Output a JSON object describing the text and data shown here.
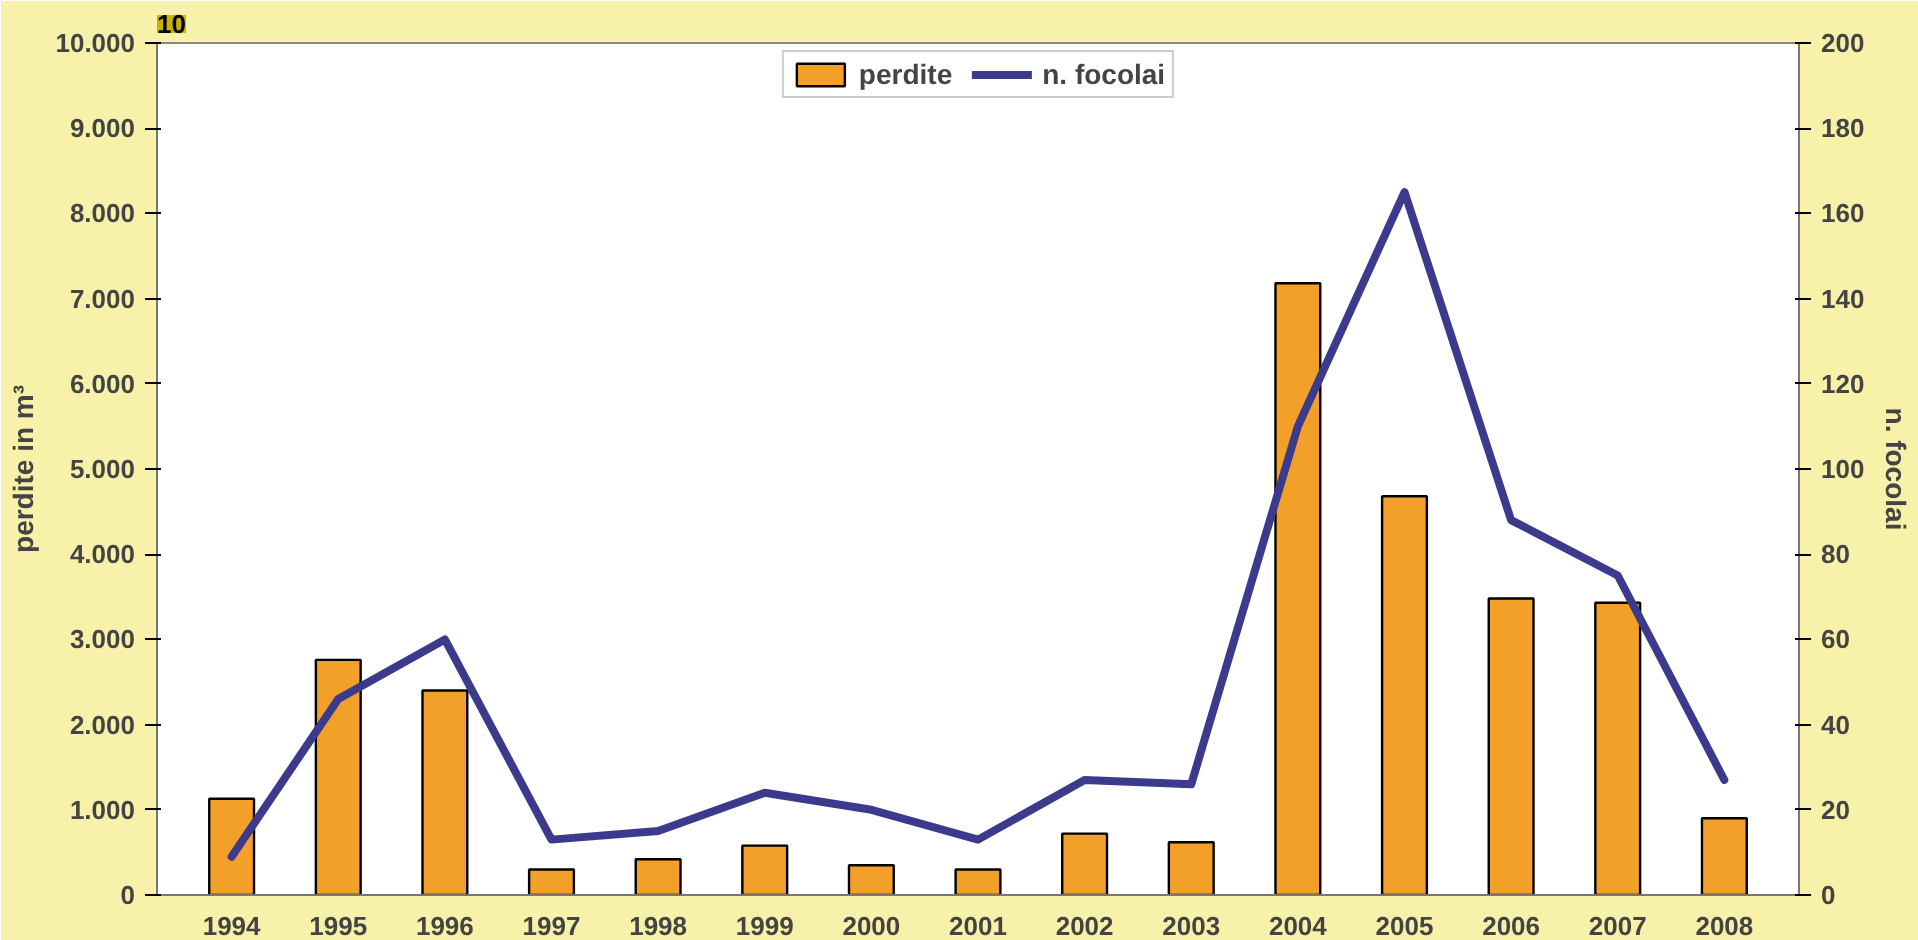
{
  "chart_data": {
    "type": "bar",
    "annotations": [
      "10"
    ],
    "categories": [
      "1994",
      "1995",
      "1996",
      "1997",
      "1998",
      "1999",
      "2000",
      "2001",
      "2002",
      "2003",
      "2004",
      "2005",
      "2006",
      "2007",
      "2008"
    ],
    "ylabel": "perdite in m³",
    "y2label": "n. focolai",
    "ylim": [
      0,
      10000
    ],
    "yticks": [
      {
        "value": 0,
        "label": "0"
      },
      {
        "value": 1000,
        "label": "1.000"
      },
      {
        "value": 2000,
        "label": "2.000"
      },
      {
        "value": 3000,
        "label": "3.000"
      },
      {
        "value": 4000,
        "label": "4.000"
      },
      {
        "value": 5000,
        "label": "5.000"
      },
      {
        "value": 6000,
        "label": "6.000"
      },
      {
        "value": 7000,
        "label": "7.000"
      },
      {
        "value": 8000,
        "label": "8.000"
      },
      {
        "value": 9000,
        "label": "9.000"
      },
      {
        "value": 10000,
        "label": "10.000"
      }
    ],
    "y2lim": [
      0,
      200
    ],
    "y2ticks": [
      0,
      20,
      40,
      60,
      80,
      100,
      120,
      140,
      160,
      180,
      200
    ],
    "legend": "top",
    "grid": false,
    "series": [
      {
        "name": "perdite",
        "color": "#f2a02a",
        "values": [
          1130,
          2760,
          2400,
          300,
          420,
          580,
          350,
          300,
          720,
          620,
          7180,
          4680,
          3480,
          3430,
          900
        ]
      },
      {
        "name": "n. focolai",
        "type": "line",
        "axis": "y2",
        "color": "#3b3a8c",
        "values": [
          9,
          46,
          60,
          13,
          15,
          24,
          20,
          13,
          27,
          26,
          110,
          165,
          88,
          75,
          27
        ]
      }
    ]
  }
}
